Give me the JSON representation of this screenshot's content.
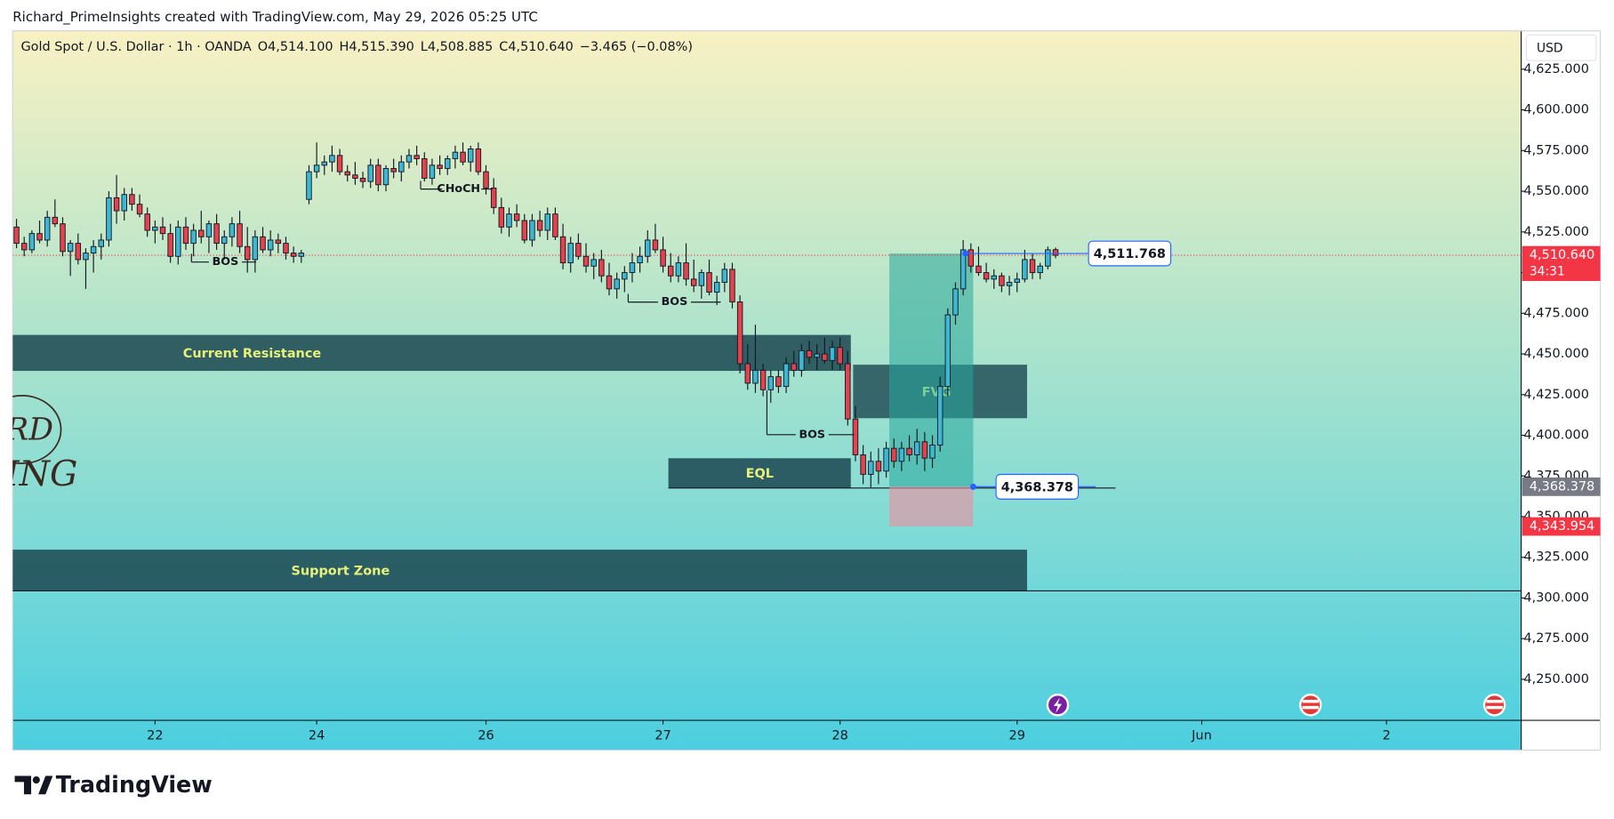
{
  "chart_data": {
    "type": "candlestick",
    "attribution": "Richard_PrimeInsights created with TradingView.com, May 29, 2026 05:25 UTC",
    "symbol": "Gold Spot / U.S. Dollar · 1h · OANDA",
    "ohlc": [
      [
        "O",
        "4,514.100"
      ],
      [
        "H",
        "4,515.390"
      ],
      [
        "L",
        "4,508.885"
      ],
      [
        "C",
        "4,510.640"
      ]
    ],
    "change": "−3.465 (−0.08%)",
    "currency": "USD",
    "brand": "TradingView",
    "watermark": [
      "RD",
      "ING"
    ],
    "up_color": "#3db8d4",
    "down_color": "#e5414e",
    "ylim": [
      4224.8,
      4648.6
    ],
    "yticks": [
      {
        "value": 4250,
        "label": "4,250.000"
      },
      {
        "value": 4275,
        "label": "4,275.000"
      },
      {
        "value": 4300,
        "label": "4,300.000"
      },
      {
        "value": 4325,
        "label": "4,325.000"
      },
      {
        "value": 4350,
        "label": "4,350.000"
      },
      {
        "value": 4375,
        "label": "4,375.000"
      },
      {
        "value": 4400,
        "label": "4,400.000"
      },
      {
        "value": 4425,
        "label": "4,425.000"
      },
      {
        "value": 4450,
        "label": "4,450.000"
      },
      {
        "value": 4475,
        "label": "4,475.000"
      },
      {
        "value": 4500,
        "label": "4,500.000"
      },
      {
        "value": 4525,
        "label": "4,525.000"
      },
      {
        "value": 4550,
        "label": "4,550.000"
      },
      {
        "value": 4575,
        "label": "4,575.000"
      },
      {
        "value": 4600,
        "label": "4,600.000"
      },
      {
        "value": 4625,
        "label": "4,625.000"
      }
    ],
    "xlim": [
      -0.5,
      195.5
    ],
    "xticks": [
      {
        "value": 18,
        "label": "22"
      },
      {
        "value": 39,
        "label": "24"
      },
      {
        "value": 61,
        "label": "26"
      },
      {
        "value": 84,
        "label": "27"
      },
      {
        "value": 107,
        "label": "28"
      },
      {
        "value": 130,
        "label": "29"
      },
      {
        "value": 154,
        "label": "Jun"
      },
      {
        "value": 178,
        "label": "2"
      }
    ],
    "candles": [
      [
        4528,
        4533,
        4515,
        4518
      ],
      [
        4518,
        4522,
        4510,
        4514
      ],
      [
        4514,
        4526,
        4512,
        4524
      ],
      [
        4524,
        4532,
        4518,
        4520
      ],
      [
        4520,
        4538,
        4516,
        4534
      ],
      [
        4534,
        4545,
        4528,
        4530
      ],
      [
        4530,
        4534,
        4510,
        4513
      ],
      [
        4513,
        4520,
        4498,
        4518
      ],
      [
        4518,
        4524,
        4505,
        4508
      ],
      [
        4508,
        4515,
        4490,
        4512
      ],
      [
        4512,
        4520,
        4500,
        4516
      ],
      [
        4516,
        4524,
        4508,
        4520
      ],
      [
        4520,
        4550,
        4516,
        4546
      ],
      [
        4546,
        4560,
        4530,
        4538
      ],
      [
        4538,
        4552,
        4532,
        4548
      ],
      [
        4548,
        4552,
        4538,
        4542
      ],
      [
        4542,
        4548,
        4534,
        4536
      ],
      [
        4536,
        4540,
        4522,
        4526
      ],
      [
        4526,
        4532,
        4518,
        4528
      ],
      [
        4528,
        4534,
        4520,
        4524
      ],
      [
        4524,
        4530,
        4506,
        4510
      ],
      [
        4510,
        4532,
        4505,
        4528
      ],
      [
        4528,
        4534,
        4514,
        4518
      ],
      [
        4518,
        4530,
        4510,
        4526
      ],
      [
        4526,
        4538,
        4518,
        4522
      ],
      [
        4522,
        4532,
        4512,
        4530
      ],
      [
        4530,
        4536,
        4514,
        4518
      ],
      [
        4518,
        4526,
        4508,
        4522
      ],
      [
        4522,
        4534,
        4516,
        4530
      ],
      [
        4530,
        4538,
        4512,
        4516
      ],
      [
        4516,
        4528,
        4500,
        4508
      ],
      [
        4508,
        4526,
        4500,
        4522
      ],
      [
        4522,
        4528,
        4512,
        4514
      ],
      [
        4514,
        4526,
        4510,
        4520
      ],
      [
        4520,
        4524,
        4512,
        4518
      ],
      [
        4518,
        4522,
        4508,
        4512
      ],
      [
        4512,
        4516,
        4506,
        4510
      ],
      [
        4510,
        4514,
        4506,
        4512
      ],
      [
        4545,
        4566,
        4542,
        4562
      ],
      [
        4562,
        4580,
        4558,
        4566
      ],
      [
        4566,
        4572,
        4560,
        4568
      ],
      [
        4568,
        4578,
        4562,
        4572
      ],
      [
        4572,
        4576,
        4560,
        4562
      ],
      [
        4562,
        4566,
        4556,
        4560
      ],
      [
        4560,
        4568,
        4554,
        4558
      ],
      [
        4558,
        4562,
        4552,
        4556
      ],
      [
        4556,
        4570,
        4552,
        4566
      ],
      [
        4566,
        4570,
        4550,
        4554
      ],
      [
        4554,
        4566,
        4550,
        4564
      ],
      [
        4564,
        4570,
        4558,
        4562
      ],
      [
        4562,
        4572,
        4556,
        4568
      ],
      [
        4568,
        4576,
        4564,
        4572
      ],
      [
        4572,
        4578,
        4566,
        4570
      ],
      [
        4570,
        4574,
        4556,
        4558
      ],
      [
        4558,
        4570,
        4554,
        4566
      ],
      [
        4566,
        4572,
        4560,
        4564
      ],
      [
        4564,
        4572,
        4560,
        4570
      ],
      [
        4570,
        4578,
        4564,
        4574
      ],
      [
        4574,
        4580,
        4566,
        4568
      ],
      [
        4568,
        4578,
        4562,
        4576
      ],
      [
        4576,
        4580,
        4560,
        4562
      ],
      [
        4562,
        4566,
        4548,
        4552
      ],
      [
        4552,
        4558,
        4536,
        4540
      ],
      [
        4540,
        4546,
        4524,
        4528
      ],
      [
        4528,
        4540,
        4522,
        4536
      ],
      [
        4536,
        4542,
        4528,
        4532
      ],
      [
        4532,
        4536,
        4518,
        4520
      ],
      [
        4520,
        4536,
        4516,
        4532
      ],
      [
        4532,
        4538,
        4522,
        4526
      ],
      [
        4526,
        4540,
        4520,
        4536
      ],
      [
        4536,
        4540,
        4520,
        4522
      ],
      [
        4522,
        4530,
        4502,
        4506
      ],
      [
        4506,
        4522,
        4500,
        4518
      ],
      [
        4518,
        4524,
        4508,
        4510
      ],
      [
        4510,
        4518,
        4500,
        4504
      ],
      [
        4504,
        4512,
        4496,
        4508
      ],
      [
        4508,
        4514,
        4494,
        4498
      ],
      [
        4498,
        4506,
        4486,
        4490
      ],
      [
        4490,
        4500,
        4484,
        4496
      ],
      [
        4496,
        4504,
        4488,
        4500
      ],
      [
        4500,
        4512,
        4494,
        4506
      ],
      [
        4506,
        4516,
        4500,
        4510
      ],
      [
        4510,
        4526,
        4506,
        4520
      ],
      [
        4520,
        4530,
        4512,
        4514
      ],
      [
        4514,
        4522,
        4500,
        4504
      ],
      [
        4504,
        4512,
        4494,
        4498
      ],
      [
        4498,
        4510,
        4494,
        4506
      ],
      [
        4506,
        4518,
        4492,
        4496
      ],
      [
        4496,
        4508,
        4488,
        4492
      ],
      [
        4492,
        4502,
        4484,
        4500
      ],
      [
        4500,
        4508,
        4486,
        4488
      ],
      [
        4488,
        4498,
        4480,
        4494
      ],
      [
        4494,
        4506,
        4488,
        4502
      ],
      [
        4502,
        4506,
        4478,
        4482
      ],
      [
        4482,
        4486,
        4438,
        4444
      ],
      [
        4444,
        4456,
        4428,
        4432
      ],
      [
        4432,
        4468,
        4426,
        4440
      ],
      [
        4440,
        4444,
        4424,
        4428
      ],
      [
        4428,
        4440,
        4420,
        4436
      ],
      [
        4436,
        4440,
        4426,
        4430
      ],
      [
        4430,
        4448,
        4426,
        4444
      ],
      [
        4444,
        4452,
        4436,
        4440
      ],
      [
        4440,
        4456,
        4436,
        4452
      ],
      [
        4452,
        4458,
        4444,
        4448
      ],
      [
        4448,
        4456,
        4440,
        4450
      ],
      [
        4450,
        4460,
        4444,
        4446
      ],
      [
        4446,
        4458,
        4440,
        4454
      ],
      [
        4454,
        4460,
        4440,
        4444
      ],
      [
        4444,
        4452,
        4406,
        4410
      ],
      [
        4410,
        4418,
        4384,
        4388
      ],
      [
        4388,
        4394,
        4370,
        4376
      ],
      [
        4376,
        4390,
        4368,
        4384
      ],
      [
        4384,
        4392,
        4370,
        4378
      ],
      [
        4378,
        4396,
        4374,
        4392
      ],
      [
        4392,
        4398,
        4380,
        4384
      ],
      [
        4384,
        4396,
        4378,
        4392
      ],
      [
        4392,
        4400,
        4384,
        4388
      ],
      [
        4388,
        4404,
        4382,
        4396
      ],
      [
        4396,
        4402,
        4378,
        4386
      ],
      [
        4386,
        4400,
        4380,
        4394
      ],
      [
        4394,
        4436,
        4390,
        4430
      ],
      [
        4430,
        4478,
        4424,
        4474
      ],
      [
        4474,
        4494,
        4468,
        4490
      ],
      [
        4490,
        4520,
        4486,
        4514
      ],
      [
        4514,
        4518,
        4500,
        4504
      ],
      [
        4504,
        4516,
        4498,
        4500
      ],
      [
        4500,
        4506,
        4494,
        4496
      ],
      [
        4496,
        4502,
        4490,
        4498
      ],
      [
        4498,
        4500,
        4488,
        4492
      ],
      [
        4492,
        4498,
        4486,
        4494
      ],
      [
        4494,
        4500,
        4488,
        4496
      ],
      [
        4496,
        4514,
        4494,
        4508
      ],
      [
        4508,
        4512,
        4496,
        4500
      ],
      [
        4500,
        4506,
        4496,
        4504
      ],
      [
        4504,
        4516,
        4502,
        4514
      ],
      [
        4514.1,
        4515.39,
        4508.885,
        4510.64
      ]
    ],
    "zones": [
      {
        "label": "Current Resistance",
        "range": [
          4439.6,
          4461.7
        ]
      },
      {
        "label": "Support Zone",
        "range": [
          4304.4,
          4329.7
        ]
      },
      {
        "label": "FVG",
        "range": [
          4410.5,
          4443.4
        ]
      },
      {
        "label": "EQL",
        "range": [
          4367.6,
          4385.9
        ]
      }
    ],
    "structure_labels": [
      "BOS",
      "CHoCH",
      "BOS",
      "BOS"
    ],
    "position": {
      "entry": 4368.378,
      "target": 4511.768,
      "stop": 4343.954
    },
    "callouts": [
      {
        "value": 4511.768,
        "label": "4,511.768"
      },
      {
        "value": 4368.378,
        "label": "4,368.378"
      }
    ],
    "price_labels": [
      {
        "value": 4510.64,
        "label": "4,510.640",
        "color": "#f23645"
      },
      {
        "value": 4368.378,
        "label": "4,368.378",
        "color": "#787b86"
      },
      {
        "value": 4343.954,
        "label": "4,343.954",
        "color": "#f23645"
      }
    ],
    "countdown": "34:31"
  }
}
